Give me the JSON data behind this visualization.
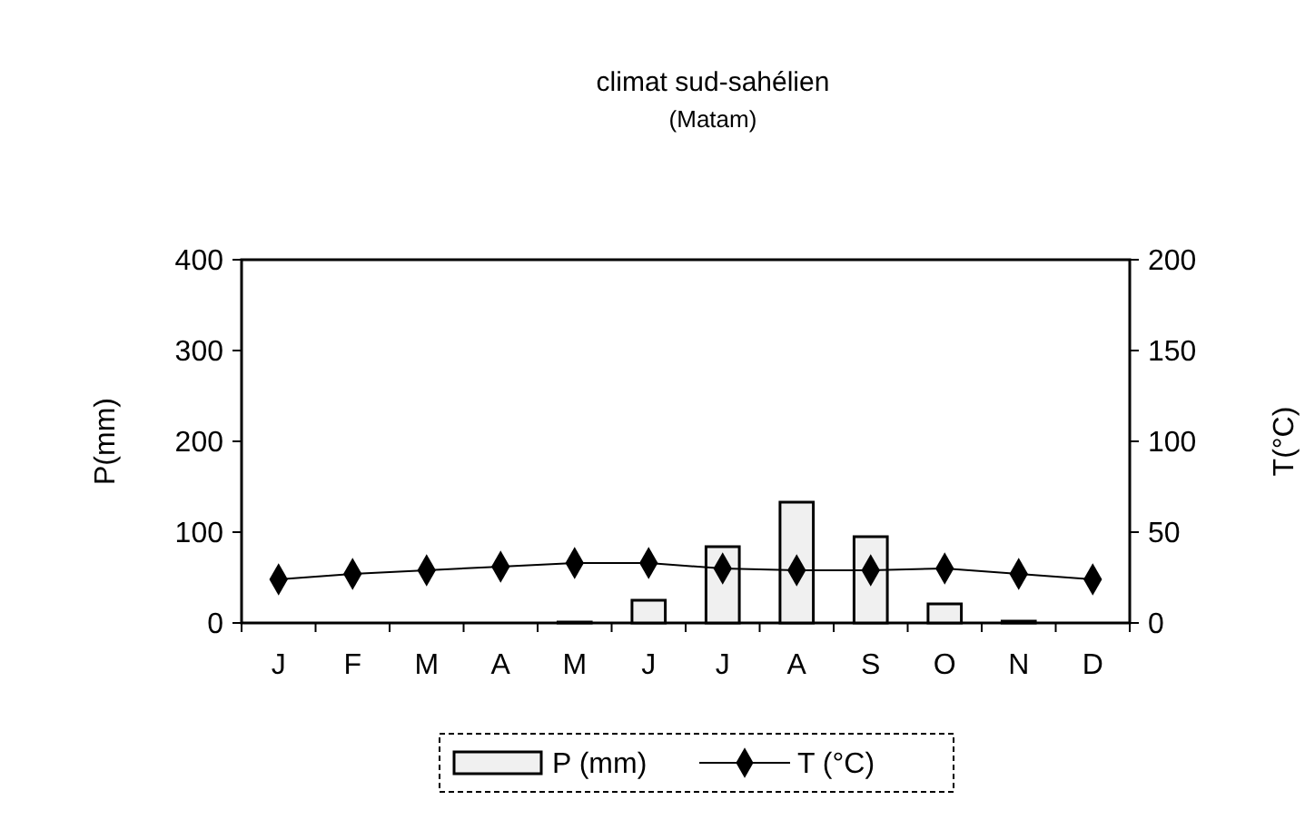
{
  "chart_data": {
    "type": "bar",
    "title": "climat sud-sahélien",
    "subtitle": "(Matam)",
    "ylabel": "P(mm)",
    "y2label": "T(°C)",
    "categories": [
      "J",
      "F",
      "M",
      "A",
      "M",
      "J",
      "J",
      "A",
      "S",
      "O",
      "N",
      "D"
    ],
    "series": [
      {
        "name": "P (mm)",
        "color": "#f0f0f0",
        "values": [
          0,
          0,
          0,
          0,
          1,
          25,
          84,
          133,
          95,
          21,
          2,
          0
        ]
      },
      {
        "name": "T (°C)",
        "type": "line",
        "axis": "y2",
        "color": "#000000",
        "marker": "diamond",
        "values": [
          24,
          27,
          29,
          31,
          33,
          33,
          30,
          29,
          29,
          30,
          27,
          24
        ]
      }
    ],
    "ylim": [
      0,
      400
    ],
    "yticks": [
      0,
      100,
      200,
      300,
      400
    ],
    "y2lim": [
      0,
      200
    ],
    "y2ticks": [
      0,
      50,
      100,
      150,
      200
    ],
    "grid": false,
    "legend": "bottom"
  }
}
